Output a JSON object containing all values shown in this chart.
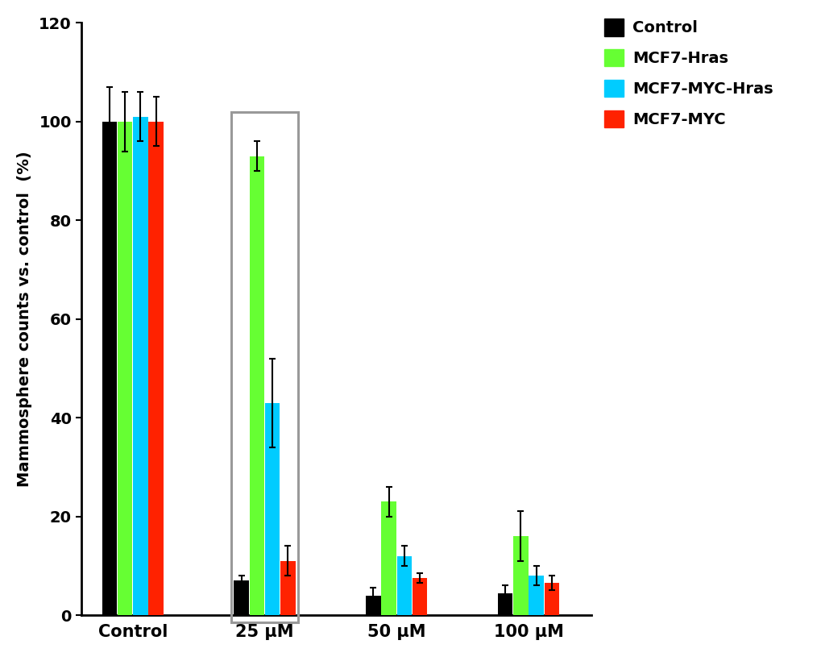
{
  "categories": [
    "Control",
    "25 μM",
    "50 μM",
    "100 μM"
  ],
  "series": {
    "Control": [
      100,
      7,
      4,
      4.5
    ],
    "MCF7-Hras": [
      100,
      93,
      23,
      16
    ],
    "MCF7-MYC-Hras": [
      101,
      43,
      12,
      8
    ],
    "MCF7-MYC": [
      100,
      11,
      7.5,
      6.5
    ]
  },
  "errors": {
    "Control": [
      7,
      1,
      1.5,
      1.5
    ],
    "MCF7-Hras": [
      6,
      3,
      3,
      5
    ],
    "MCF7-MYC-Hras": [
      5,
      9,
      2,
      2
    ],
    "MCF7-MYC": [
      5,
      3,
      1,
      1.5
    ]
  },
  "colors": {
    "Control": "#000000",
    "MCF7-Hras": "#66FF33",
    "MCF7-MYC-Hras": "#00CCFF",
    "MCF7-MYC": "#FF2200"
  },
  "ylabel": "Mammosphere counts vs. control  (%)",
  "ylim": [
    0,
    120
  ],
  "yticks": [
    0,
    20,
    40,
    60,
    80,
    100,
    120
  ],
  "bar_width": 0.13,
  "group_positions": [
    0.35,
    1.35,
    2.35,
    3.35
  ],
  "legend_labels": [
    "Control",
    "MCF7-Hras",
    "MCF7-MYC-Hras",
    "MCF7-MYC"
  ],
  "highlight_group": 1,
  "background_color": "#ffffff",
  "axis_linewidth": 2.0
}
